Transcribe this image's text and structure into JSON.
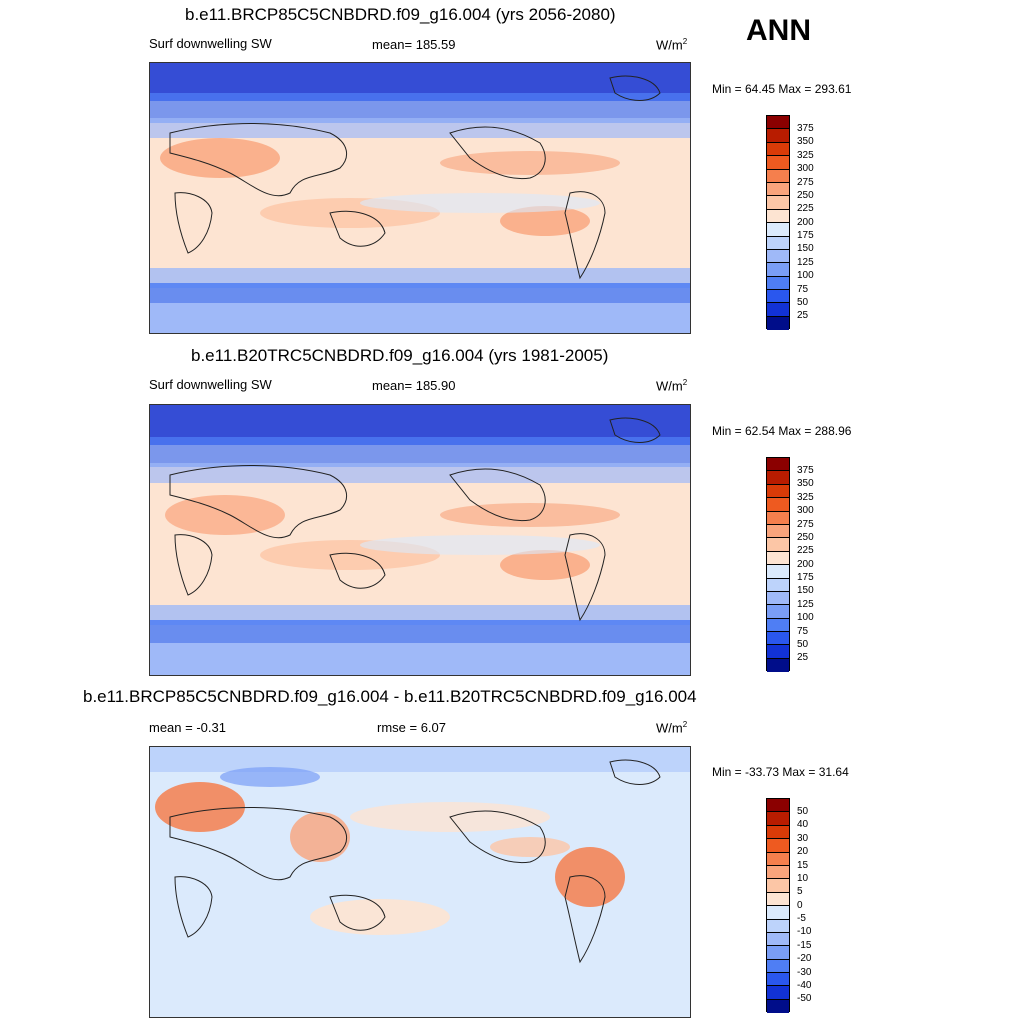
{
  "season": "ANN",
  "panels": [
    {
      "title": "b.e11.BRCP85C5CNBDRD.f09_g16.004 (yrs 2056-2080)",
      "left": "Surf downwelling SW",
      "center": "mean= 185.59",
      "units": "W/m",
      "minmax": "Min =  64.45 Max = 293.61"
    },
    {
      "title": "b.e11.B20TRC5CNBDRD.f09_g16.004 (yrs 1981-2005)",
      "left": "Surf downwelling SW",
      "center": "mean= 185.90",
      "units": "W/m",
      "minmax": "Min =  62.54 Max = 288.96"
    },
    {
      "title": "b.e11.BRCP85C5CNBDRD.f09_g16.004 - b.e11.B20TRC5CNBDRD.f09_g16.004",
      "left": "mean =  -0.31",
      "center": "rmse =   6.07",
      "units": "W/m",
      "minmax": "Min = -33.73 Max =  31.64"
    }
  ],
  "colorbar_abs": {
    "labels": [
      "375",
      "350",
      "325",
      "300",
      "275",
      "250",
      "225",
      "200",
      "175",
      "150",
      "125",
      "100",
      "75",
      "50",
      "25"
    ],
    "colors": [
      "#8b0000",
      "#b81c00",
      "#d93b08",
      "#ee5a20",
      "#f57f4d",
      "#f9a47c",
      "#fcc6a6",
      "#fde4d2",
      "#dbeafc",
      "#bdd3fb",
      "#9fb9f8",
      "#7a9ef6",
      "#4f7ef4",
      "#2a57ee",
      "#1232d6",
      "#000d8a"
    ]
  },
  "colorbar_diff": {
    "labels": [
      "50",
      "40",
      "30",
      "20",
      "15",
      "10",
      "5",
      "0",
      "-5",
      "-10",
      "-15",
      "-20",
      "-30",
      "-40",
      "-50"
    ],
    "colors": [
      "#8b0000",
      "#b81c00",
      "#d93b08",
      "#ee5a20",
      "#f57f4d",
      "#f9a47c",
      "#fcc6a6",
      "#fde4d2",
      "#dbeafc",
      "#bdd3fb",
      "#9fb9f8",
      "#7a9ef6",
      "#4f7ef4",
      "#2a57ee",
      "#1232d6",
      "#000d8a"
    ]
  }
}
